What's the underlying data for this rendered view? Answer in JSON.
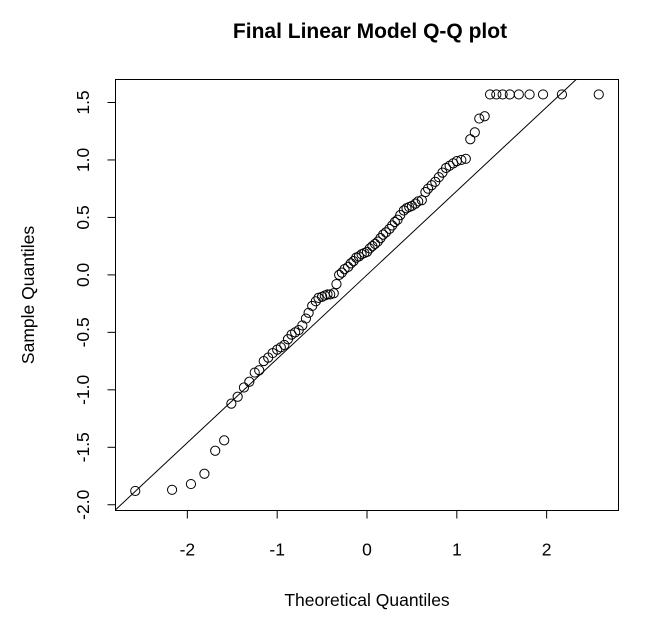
{
  "chart_data": {
    "type": "scatter",
    "title": "Final Linear Model Q-Q plot",
    "xlabel": "Theoretical Quantiles",
    "ylabel": "Sample Quantiles",
    "xlim": [
      -2.8,
      2.8
    ],
    "ylim": [
      -2.05,
      1.7
    ],
    "x_ticks": [
      -2,
      -1,
      0,
      1,
      2
    ],
    "x_tick_labels": [
      "-2",
      "-1",
      "0",
      "1",
      "2"
    ],
    "y_ticks": [
      -2.0,
      -1.5,
      -1.0,
      -0.5,
      0.0,
      0.5,
      1.0,
      1.5
    ],
    "y_tick_labels": [
      "-2.0",
      "-1.5",
      "-1.0",
      "-0.5",
      "0.0",
      "0.5",
      "1.0",
      "1.5"
    ],
    "grid": false,
    "legend": "none",
    "reference_line": {
      "slope": 0.73,
      "intercept": 0.0
    },
    "series": [
      {
        "x": [
          -2.58,
          -2.17,
          -1.96,
          -1.81,
          -1.69,
          -1.59,
          -1.51,
          -1.44,
          -1.37,
          -1.31,
          -1.25,
          -1.2,
          -1.15,
          -1.1,
          -1.05,
          -1.0,
          -0.96,
          -0.92,
          -0.88,
          -0.84,
          -0.8,
          -0.76,
          -0.72,
          -0.68,
          -0.65,
          -0.61,
          -0.57,
          -0.54,
          -0.5,
          -0.47,
          -0.44,
          -0.41,
          -0.37,
          -0.34,
          -0.31,
          -0.28,
          -0.25,
          -0.21,
          -0.18,
          -0.15,
          -0.12,
          -0.09,
          -0.06,
          -0.03,
          0.0,
          0.03,
          0.06,
          0.09,
          0.12,
          0.15,
          0.18,
          0.21,
          0.25,
          0.28,
          0.31,
          0.34,
          0.37,
          0.41,
          0.44,
          0.47,
          0.5,
          0.54,
          0.57,
          0.61,
          0.65,
          0.68,
          0.72,
          0.76,
          0.8,
          0.84,
          0.88,
          0.92,
          0.96,
          1.0,
          1.05,
          1.1,
          1.15,
          1.2,
          1.25,
          1.31,
          1.37,
          1.44,
          1.51,
          1.59,
          1.69,
          1.81,
          1.96,
          2.17,
          2.58
        ],
        "y": [
          -1.88,
          -1.87,
          -1.82,
          -1.73,
          -1.53,
          -1.44,
          -1.12,
          -1.06,
          -0.98,
          -0.93,
          -0.85,
          -0.83,
          -0.75,
          -0.72,
          -0.68,
          -0.65,
          -0.63,
          -0.61,
          -0.56,
          -0.52,
          -0.5,
          -0.48,
          -0.44,
          -0.38,
          -0.33,
          -0.27,
          -0.23,
          -0.2,
          -0.19,
          -0.18,
          -0.17,
          -0.17,
          -0.16,
          -0.08,
          0.0,
          0.02,
          0.05,
          0.07,
          0.1,
          0.12,
          0.15,
          0.16,
          0.18,
          0.19,
          0.2,
          0.23,
          0.25,
          0.27,
          0.29,
          0.32,
          0.35,
          0.37,
          0.4,
          0.43,
          0.46,
          0.48,
          0.52,
          0.56,
          0.58,
          0.59,
          0.6,
          0.62,
          0.64,
          0.65,
          0.72,
          0.75,
          0.78,
          0.81,
          0.85,
          0.89,
          0.93,
          0.95,
          0.97,
          0.99,
          1.0,
          1.01,
          1.18,
          1.24,
          1.36,
          1.38,
          1.57,
          1.57,
          1.57,
          1.57,
          1.57,
          1.57,
          1.57,
          1.57,
          1.57
        ]
      }
    ]
  }
}
